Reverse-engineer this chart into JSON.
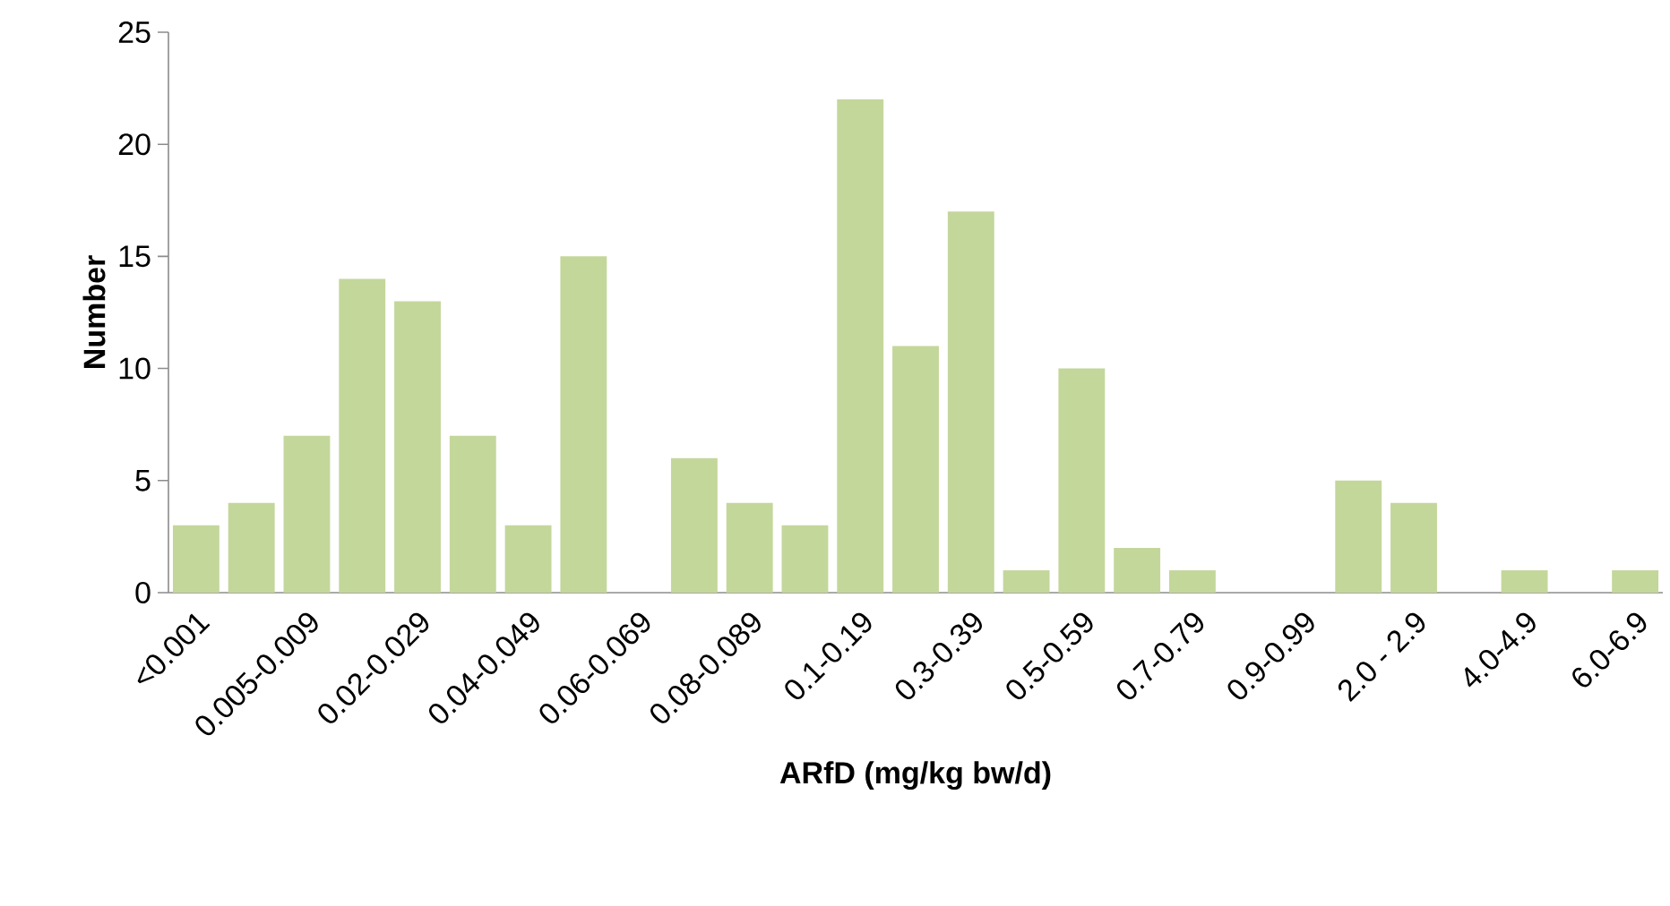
{
  "chart_data": {
    "type": "bar",
    "xlabel": "ARfD (mg/kg bw/d)",
    "ylabel": "Number",
    "categories": [
      "<0.001",
      null,
      "0.005-0.009",
      null,
      "0.02-0.029",
      null,
      "0.04-0.049",
      null,
      "0.06-0.069",
      null,
      "0.08-0.089",
      null,
      "0.1-0.19",
      null,
      "0.3-0.39",
      null,
      "0.5-0.59",
      null,
      "0.7-0.79",
      null,
      "0.9-0.99",
      null,
      "2.0 - 2.9",
      null,
      "4.0-4.9",
      null,
      "6.0-6.9"
    ],
    "values": [
      3,
      4,
      7,
      14,
      13,
      7,
      3,
      15,
      0,
      6,
      4,
      3,
      22,
      11,
      17,
      1,
      10,
      2,
      1,
      0,
      0,
      5,
      4,
      0,
      1,
      0,
      1
    ],
    "color": "#c4d79b",
    "ylim": [
      0,
      25
    ],
    "yticks": [
      0,
      5,
      10,
      15,
      20,
      25
    ]
  }
}
